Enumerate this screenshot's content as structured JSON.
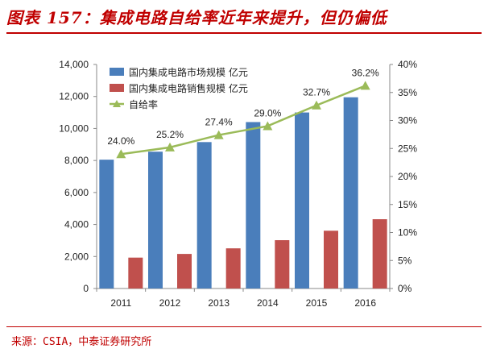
{
  "header": {
    "title": "图表 157：集成电路自给率近年来提升，但仍偏低"
  },
  "footer": {
    "source": "来源：CSIA，中泰证券研究所"
  },
  "colors": {
    "blue": "#4a7ebb",
    "red": "#c0504d",
    "green": "#9bbb59",
    "title": "#c00000"
  },
  "chart_data": {
    "type": "bar",
    "categories": [
      "2011",
      "2012",
      "2013",
      "2014",
      "2015",
      "2016"
    ],
    "series": [
      {
        "name": "国内集成电路市场规模 亿元",
        "axis": "left",
        "kind": "bar",
        "values": [
          8050,
          8550,
          9150,
          10400,
          11000,
          11950
        ]
      },
      {
        "name": "国内集成电路销售规模 亿元",
        "axis": "left",
        "kind": "bar",
        "values": [
          1930,
          2160,
          2510,
          3020,
          3610,
          4330
        ]
      },
      {
        "name": "自给率",
        "axis": "right",
        "kind": "line",
        "values": [
          24.0,
          25.2,
          27.4,
          29.0,
          32.7,
          36.2
        ],
        "labels": [
          "24.0%",
          "25.2%",
          "27.4%",
          "29.0%",
          "32.7%",
          "36.2%"
        ]
      }
    ],
    "y_left": {
      "min": 0,
      "max": 14000,
      "ticks": [
        "0",
        "2,000",
        "4,000",
        "6,000",
        "8,000",
        "10,000",
        "12,000",
        "14,000"
      ]
    },
    "y_right": {
      "min": 0,
      "max": 40,
      "ticks": [
        "0%",
        "5%",
        "10%",
        "15%",
        "20%",
        "25%",
        "30%",
        "35%",
        "40%"
      ]
    },
    "legend_position": "top-left"
  }
}
